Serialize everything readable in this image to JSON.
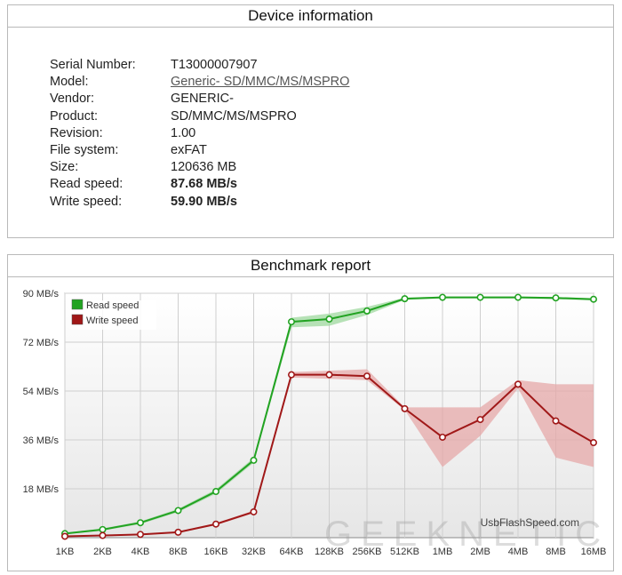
{
  "device_panel": {
    "title": "Device information",
    "fields": [
      {
        "label": "Serial Number:",
        "value": "T13000007907"
      },
      {
        "label": "Model:",
        "value": "Generic- SD/MMC/MS/MSPRO"
      },
      {
        "label": "Vendor:",
        "value": "GENERIC-"
      },
      {
        "label": "Product:",
        "value": "SD/MMC/MS/MSPRO"
      },
      {
        "label": "Revision:",
        "value": "1.00"
      },
      {
        "label": "File system:",
        "value": "exFAT"
      },
      {
        "label": "Size:",
        "value": "120636 MB"
      },
      {
        "label": "Read speed:",
        "value": "87.68 MB/s"
      },
      {
        "label": "Write speed:",
        "value": "59.90 MB/s"
      }
    ]
  },
  "bench_panel": {
    "title": "Benchmark report",
    "brand": "UsbFlashSpeed.com",
    "watermark": "GEEKNETIC"
  },
  "colors": {
    "read": "#22a322",
    "write": "#a01818",
    "read_band": "#9fd89f",
    "write_band": "#e5a8a8"
  },
  "chart_data": {
    "type": "line",
    "title": "",
    "xlabel": "",
    "ylabel": "",
    "categories": [
      "1KB",
      "2KB",
      "4KB",
      "8KB",
      "16KB",
      "32KB",
      "64KB",
      "128KB",
      "256KB",
      "512KB",
      "1MB",
      "2MB",
      "4MB",
      "8MB",
      "16MB"
    ],
    "ylim": [
      0,
      90
    ],
    "y_ticks": [
      18,
      36,
      54,
      72,
      90
    ],
    "y_tick_labels": [
      "18 MB/s",
      "36 MB/s",
      "54 MB/s",
      "72 MB/s",
      "90 MB/s"
    ],
    "grid": true,
    "legend": "top-left",
    "series": [
      {
        "name": "Read speed",
        "values": [
          1.5,
          3,
          5.5,
          10,
          17,
          28.5,
          79.5,
          80.5,
          83.5,
          88,
          88.5,
          88.5,
          88.5,
          88.3,
          87.8
        ],
        "band_low": [
          1.2,
          2.6,
          5.0,
          9.4,
          16.2,
          27.6,
          77.5,
          78,
          82,
          87.6,
          88.1,
          88.1,
          88.1,
          87.8,
          87.4
        ],
        "band_high": [
          1.8,
          3.4,
          6.0,
          10.6,
          17.8,
          29.4,
          81,
          82.5,
          85,
          88.4,
          88.8,
          88.8,
          88.8,
          88.6,
          88.2
        ]
      },
      {
        "name": "Write speed",
        "values": [
          0.5,
          0.8,
          1.2,
          2,
          5,
          9.5,
          60,
          60,
          59.5,
          47.5,
          37,
          43.5,
          56.5,
          43,
          35
        ],
        "band_low": [
          0.3,
          0.6,
          1.0,
          1.7,
          4.6,
          9.0,
          59,
          58.5,
          58,
          47,
          26,
          37.5,
          55,
          29.5,
          26
        ],
        "band_high": [
          0.7,
          1.0,
          1.4,
          2.3,
          5.4,
          10.0,
          61,
          61.5,
          62,
          48,
          48,
          48,
          58,
          56.5,
          56.5
        ]
      }
    ]
  }
}
